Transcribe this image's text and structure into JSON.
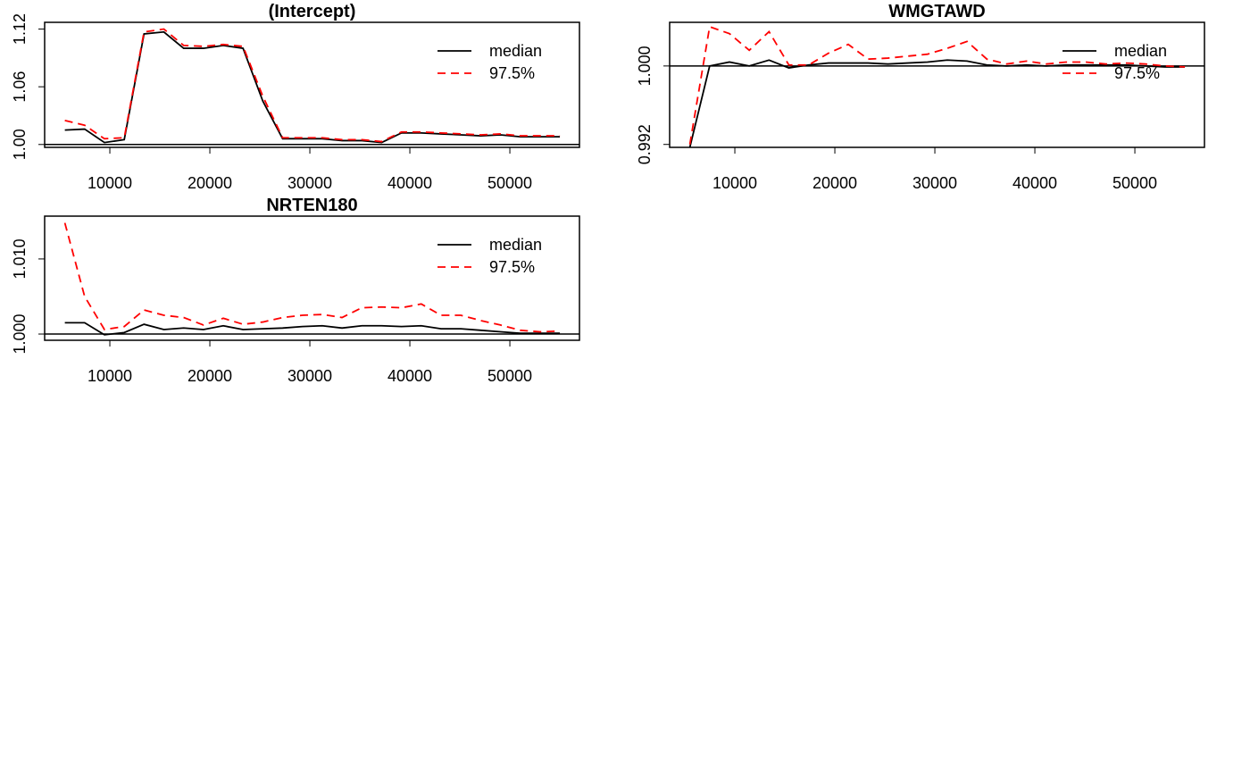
{
  "chart_data": [
    {
      "type": "line",
      "title": "(Intercept)",
      "x": [
        5500,
        7480,
        9460,
        11440,
        13420,
        15400,
        17380,
        19360,
        21340,
        23320,
        25300,
        27280,
        29260,
        31240,
        33220,
        35200,
        37180,
        39160,
        41140,
        43120,
        45100,
        47080,
        49060,
        51040,
        53020,
        55000
      ],
      "series": [
        {
          "name": "median",
          "color": "#000000",
          "linestyle": "solid",
          "values": [
            1.015,
            1.016,
            1.002,
            1.005,
            1.115,
            1.117,
            1.1,
            1.1,
            1.103,
            1.1,
            1.045,
            1.006,
            1.006,
            1.006,
            1.004,
            1.004,
            1.002,
            1.012,
            1.012,
            1.011,
            1.01,
            1.009,
            1.01,
            1.008,
            1.008,
            1.008
          ]
        },
        {
          "name": "97.5%",
          "color": "#ff0000",
          "linestyle": "dashed",
          "values": [
            1.025,
            1.02,
            1.006,
            1.007,
            1.117,
            1.12,
            1.103,
            1.102,
            1.104,
            1.102,
            1.05,
            1.007,
            1.007,
            1.007,
            1.005,
            1.005,
            1.003,
            1.013,
            1.013,
            1.012,
            1.011,
            1.01,
            1.011,
            1.009,
            1.009,
            1.009
          ]
        }
      ],
      "xlim": [
        3480,
        56960
      ],
      "xticks": [
        10000,
        20000,
        30000,
        40000,
        50000
      ],
      "ylim": [
        0.997,
        1.127
      ],
      "yticks": [
        {
          "value": 1,
          "label": "1.00"
        },
        1.06,
        1.12
      ],
      "hline": 1,
      "legend": "topright"
    },
    {
      "type": "line",
      "title": "WMGTAWD",
      "x": [
        5500,
        7480,
        9460,
        11440,
        13420,
        15400,
        17380,
        19360,
        21340,
        23320,
        25300,
        27280,
        29260,
        31240,
        33220,
        35200,
        37180,
        39160,
        41140,
        43120,
        45100,
        47080,
        49060,
        51040,
        53020,
        55000
      ],
      "series": [
        {
          "name": "median",
          "color": "#000000",
          "linestyle": "solid",
          "values": [
            0.9917,
            1.0,
            1.0004,
            1.0,
            1.0006,
            0.9998,
            1.0001,
            1.0003,
            1.0003,
            1.0003,
            1.0002,
            1.0003,
            1.0004,
            1.0006,
            1.0005,
            1.0001,
            1.0,
            1.0001,
            1.0,
            1.0001,
            1.0001,
            1.0001,
            1.0001,
            1.0,
            0.9999,
            0.9999
          ]
        },
        {
          "name": "97.5%",
          "color": "#ff0000",
          "linestyle": "dashed",
          "values": [
            0.992,
            1.004,
            1.0033,
            1.0016,
            1.0035,
            1.0001,
            1.0001,
            1.0013,
            1.0022,
            1.0007,
            1.0008,
            1.001,
            1.0012,
            1.0018,
            1.0025,
            1.0007,
            1.0002,
            1.0005,
            1.0002,
            1.0004,
            1.0004,
            1.0002,
            1.0003,
            1.0002,
            1.0,
            0.9999
          ]
        }
      ],
      "xlim": [
        3480,
        56960
      ],
      "xticks": [
        10000,
        20000,
        30000,
        40000,
        50000
      ],
      "ylim": [
        0.9917,
        1.00445
      ],
      "yticks": [
        0.992,
        {
          "value": 1,
          "label": "1.000"
        }
      ],
      "hline": 1,
      "legend": "topright"
    },
    {
      "type": "line",
      "title": "NRTEN180",
      "x": [
        5500,
        7480,
        9460,
        11440,
        13420,
        15400,
        17380,
        19360,
        21340,
        23320,
        25300,
        27280,
        29260,
        31240,
        33220,
        35200,
        37180,
        39160,
        41140,
        43120,
        45100,
        47080,
        49060,
        51040,
        53020,
        55000
      ],
      "series": [
        {
          "name": "median",
          "color": "#000000",
          "linestyle": "solid",
          "values": [
            1.0015,
            1.0015,
            0.9999,
            1.0002,
            1.0013,
            1.0006,
            1.0008,
            1.0006,
            1.0011,
            1.0006,
            1.0007,
            1.0008,
            1.001,
            1.0011,
            1.0008,
            1.0011,
            1.0011,
            1.001,
            1.0011,
            1.0007,
            1.0007,
            1.0005,
            1.0003,
            1.0001,
            1.0001,
            1.0001
          ]
        },
        {
          "name": "97.5%",
          "color": "#ff0000",
          "linestyle": "dashed",
          "values": [
            1.0148,
            1.005,
            1.0006,
            1.001,
            1.0032,
            1.0025,
            1.0022,
            1.0012,
            1.0021,
            1.0013,
            1.0016,
            1.0022,
            1.0025,
            1.0026,
            1.0022,
            1.0035,
            1.0036,
            1.0035,
            1.004,
            1.0025,
            1.0025,
            1.0018,
            1.0012,
            1.0005,
            1.0003,
            1.0004
          ]
        }
      ],
      "xlim": [
        3480,
        56960
      ],
      "xticks": [
        10000,
        20000,
        30000,
        40000,
        50000
      ],
      "ylim": [
        0.99917,
        1.0157
      ],
      "yticks": [
        {
          "value": 1,
          "label": "1.000"
        },
        {
          "value": 1.01,
          "label": "1.010"
        }
      ],
      "hline": 1,
      "legend": "topright"
    }
  ]
}
